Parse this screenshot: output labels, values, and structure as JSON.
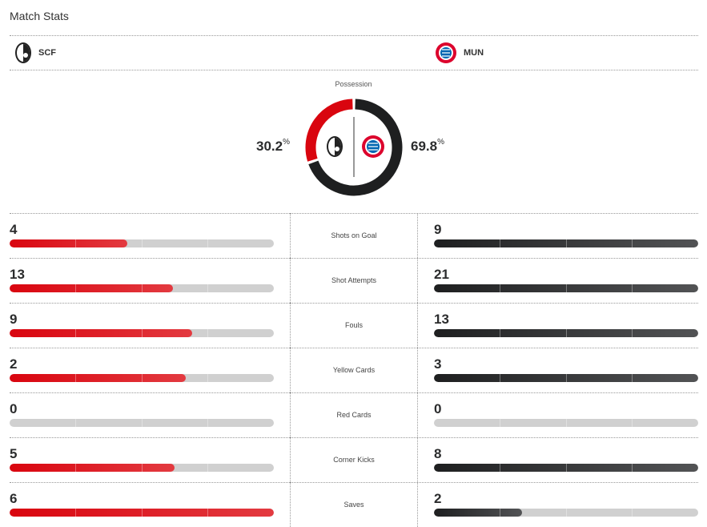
{
  "title": "Match Stats",
  "home": {
    "abbr": "SCF",
    "color": "#d9050f"
  },
  "away": {
    "abbr": "MUN",
    "color": "#1e1f20"
  },
  "possession": {
    "label": "Possession",
    "home": "30.2",
    "away": "69.8",
    "unit": "%",
    "home_value": 30.2,
    "away_value": 69.8
  },
  "stats": [
    {
      "label": "Shots on Goal",
      "home": 4,
      "away": 9
    },
    {
      "label": "Shot Attempts",
      "home": 13,
      "away": 21
    },
    {
      "label": "Fouls",
      "home": 9,
      "away": 13
    },
    {
      "label": "Yellow Cards",
      "home": 2,
      "away": 3
    },
    {
      "label": "Red Cards",
      "home": 0,
      "away": 0
    },
    {
      "label": "Corner Kicks",
      "home": 5,
      "away": 8
    },
    {
      "label": "Saves",
      "home": 6,
      "away": 2
    }
  ]
}
